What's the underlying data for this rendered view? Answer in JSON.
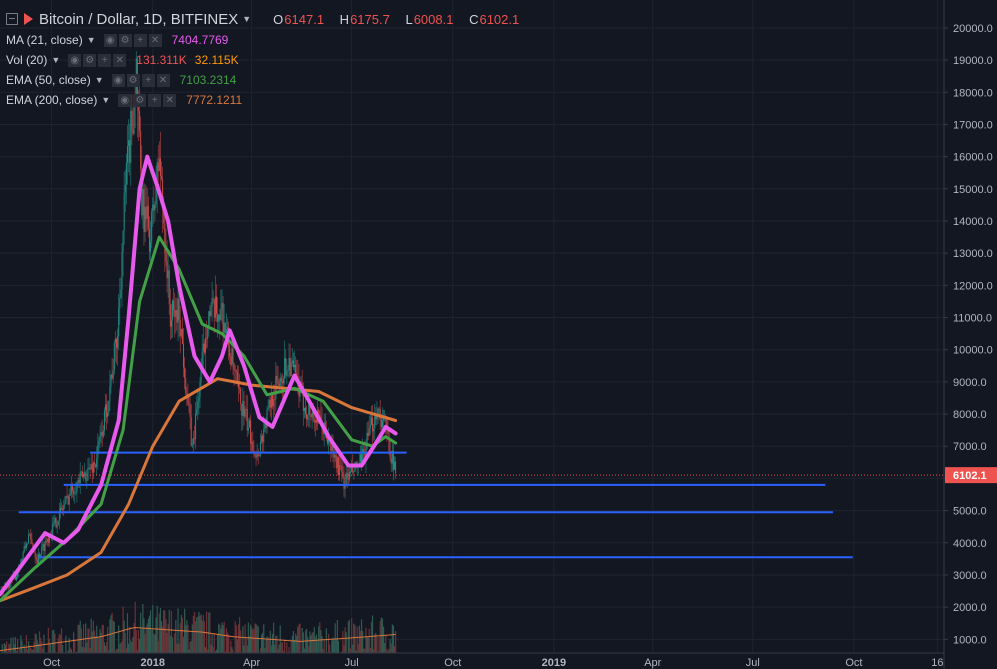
{
  "header": {
    "symbol": "Bitcoin / Dollar, 1D, BITFINEX",
    "ohlc": [
      {
        "key": "O",
        "value": "6147.1"
      },
      {
        "key": "H",
        "value": "6175.7"
      },
      {
        "key": "L",
        "value": "6008.1"
      },
      {
        "key": "C",
        "value": "6102.1"
      }
    ]
  },
  "indicators": [
    {
      "name": "MA (21, close)",
      "value": "7404.7769",
      "color": "#e85aed"
    },
    {
      "name": "Vol (20)",
      "value": "131.311K",
      "value2": "32.115K",
      "color": "#ef5350",
      "color2": "#ff9800"
    },
    {
      "name": "EMA (50, close)",
      "value": "7103.2314",
      "color": "#43a047"
    },
    {
      "name": "EMA (200, close)",
      "value": "7772.1211",
      "color": "#d9773b"
    }
  ],
  "chart_data": {
    "type": "candlestick",
    "instrument": "Bitcoin / Dollar",
    "timeframe": "1D",
    "exchange": "BITFINEX",
    "y_axis": {
      "min": 700,
      "max": 20500,
      "ticks": [
        1000,
        2000,
        3000,
        4000,
        5000,
        6000,
        7000,
        8000,
        9000,
        10000,
        11000,
        12000,
        13000,
        14000,
        15000,
        16000,
        17000,
        18000,
        19000,
        20000
      ],
      "tick_labels": [
        "1000.0",
        "2000.0",
        "3000.0",
        "4000.0",
        "5000.0",
        "6000.0",
        "7000.0",
        "8000.0",
        "9000.0",
        "10000.0",
        "11000.0",
        "12000.0",
        "13000.0",
        "14000.0",
        "15000.0",
        "16000.0",
        "17000.0",
        "18000.0",
        "19000.0",
        "20000.0"
      ]
    },
    "x_axis": {
      "range": [
        "2017-08-15",
        "2019-12-22"
      ],
      "ticks": [
        {
          "date": "2017-10-01",
          "label": "Oct",
          "bold": false
        },
        {
          "date": "2018-01-01",
          "label": "2018",
          "bold": true
        },
        {
          "date": "2018-04-01",
          "label": "Apr",
          "bold": false
        },
        {
          "date": "2018-07-01",
          "label": "Jul",
          "bold": false
        },
        {
          "date": "2018-10-01",
          "label": "Oct",
          "bold": false
        },
        {
          "date": "2019-01-01",
          "label": "2019",
          "bold": true
        },
        {
          "date": "2019-04-01",
          "label": "Apr",
          "bold": false
        },
        {
          "date": "2019-07-01",
          "label": "Jul",
          "bold": false
        },
        {
          "date": "2019-10-01",
          "label": "Oct",
          "bold": false
        },
        {
          "date": "2019-12-16",
          "label": "16",
          "bold": false
        }
      ]
    },
    "last_price": {
      "value": 6102.1,
      "label": "6102.1",
      "color": "#ef5350"
    },
    "price_path": [
      [
        "2017-08-15",
        2400
      ],
      [
        "2017-08-30",
        3000
      ],
      [
        "2017-09-10",
        4200
      ],
      [
        "2017-09-18",
        3500
      ],
      [
        "2017-10-01",
        4400
      ],
      [
        "2017-10-20",
        5700
      ],
      [
        "2017-11-10",
        6500
      ],
      [
        "2017-11-20",
        8200
      ],
      [
        "2017-11-30",
        10500
      ],
      [
        "2017-12-07",
        15000
      ],
      [
        "2017-12-17",
        18500
      ],
      [
        "2017-12-22",
        14500
      ],
      [
        "2017-12-30",
        13500
      ],
      [
        "2018-01-07",
        16000
      ],
      [
        "2018-01-17",
        11000
      ],
      [
        "2018-01-25",
        11200
      ],
      [
        "2018-02-06",
        6900
      ],
      [
        "2018-02-20",
        11100
      ],
      [
        "2018-03-05",
        11200
      ],
      [
        "2018-03-20",
        8600
      ],
      [
        "2018-04-06",
        6700
      ],
      [
        "2018-04-20",
        8600
      ],
      [
        "2018-05-05",
        9700
      ],
      [
        "2018-05-20",
        8200
      ],
      [
        "2018-06-05",
        7600
      ],
      [
        "2018-06-24",
        5900
      ],
      [
        "2018-07-10",
        6500
      ],
      [
        "2018-07-24",
        8200
      ],
      [
        "2018-08-01",
        7600
      ],
      [
        "2018-08-10",
        6100
      ]
    ],
    "volume_profile": [
      [
        "2017-08-15",
        900
      ],
      [
        "2017-09-15",
        1100
      ],
      [
        "2017-10-15",
        1300
      ],
      [
        "2017-11-15",
        1500
      ],
      [
        "2017-12-15",
        1900
      ],
      [
        "2018-01-15",
        1800
      ],
      [
        "2018-02-15",
        1700
      ],
      [
        "2018-03-15",
        1500
      ],
      [
        "2018-04-15",
        1400
      ],
      [
        "2018-05-15",
        1300
      ],
      [
        "2018-06-15",
        1400
      ],
      [
        "2018-07-15",
        1500
      ],
      [
        "2018-08-10",
        1600
      ]
    ],
    "series": [
      {
        "name": "MA (21, close)",
        "color": "#e85aed",
        "points": [
          [
            "2017-08-15",
            2400
          ],
          [
            "2017-09-10",
            3600
          ],
          [
            "2017-09-25",
            4300
          ],
          [
            "2017-10-12",
            4000
          ],
          [
            "2017-10-25",
            4400
          ],
          [
            "2017-11-15",
            5800
          ],
          [
            "2017-12-01",
            7800
          ],
          [
            "2017-12-10",
            11000
          ],
          [
            "2017-12-20",
            15000
          ],
          [
            "2017-12-27",
            16000
          ],
          [
            "2018-01-06",
            15000
          ],
          [
            "2018-01-15",
            14000
          ],
          [
            "2018-01-25",
            12000
          ],
          [
            "2018-02-08",
            9800
          ],
          [
            "2018-02-22",
            9000
          ],
          [
            "2018-03-05",
            9800
          ],
          [
            "2018-03-12",
            10600
          ],
          [
            "2018-03-25",
            9500
          ],
          [
            "2018-04-08",
            7900
          ],
          [
            "2018-04-20",
            7600
          ],
          [
            "2018-05-10",
            9200
          ],
          [
            "2018-05-25",
            8300
          ],
          [
            "2018-06-10",
            7300
          ],
          [
            "2018-06-28",
            6400
          ],
          [
            "2018-07-10",
            6400
          ],
          [
            "2018-07-25",
            7200
          ],
          [
            "2018-08-01",
            7600
          ],
          [
            "2018-08-10",
            7400
          ]
        ]
      },
      {
        "name": "EMA (50, close)",
        "color": "#43a047",
        "points": [
          [
            "2017-08-15",
            2200
          ],
          [
            "2017-09-15",
            3200
          ],
          [
            "2017-10-15",
            4100
          ],
          [
            "2017-11-15",
            5200
          ],
          [
            "2017-12-05",
            7500
          ],
          [
            "2017-12-20",
            11500
          ],
          [
            "2018-01-07",
            13500
          ],
          [
            "2018-01-25",
            12500
          ],
          [
            "2018-02-15",
            10800
          ],
          [
            "2018-03-05",
            10500
          ],
          [
            "2018-03-25",
            9800
          ],
          [
            "2018-04-15",
            8600
          ],
          [
            "2018-05-10",
            8800
          ],
          [
            "2018-06-05",
            8400
          ],
          [
            "2018-07-01",
            7200
          ],
          [
            "2018-07-20",
            7000
          ],
          [
            "2018-08-01",
            7300
          ],
          [
            "2018-08-10",
            7100
          ]
        ]
      },
      {
        "name": "EMA (200, close)",
        "color": "#d9773b",
        "points": [
          [
            "2017-08-15",
            2200
          ],
          [
            "2017-09-15",
            2600
          ],
          [
            "2017-10-15",
            3000
          ],
          [
            "2017-11-15",
            3700
          ],
          [
            "2017-12-10",
            5200
          ],
          [
            "2018-01-01",
            7000
          ],
          [
            "2018-01-25",
            8400
          ],
          [
            "2018-03-01",
            9100
          ],
          [
            "2018-04-01",
            8900
          ],
          [
            "2018-05-01",
            8800
          ],
          [
            "2018-06-01",
            8700
          ],
          [
            "2018-07-01",
            8200
          ],
          [
            "2018-08-10",
            7800
          ]
        ]
      }
    ],
    "horizontal_lines": [
      {
        "price": 6800,
        "from": "2017-11-05",
        "to": "2018-08-20",
        "color": "#2962ff"
      },
      {
        "price": 5800,
        "from": "2017-10-12",
        "to": "2019-09-05",
        "color": "#2962ff"
      },
      {
        "price": 4950,
        "from": "2017-09-01",
        "to": "2019-09-12",
        "color": "#2962ff"
      },
      {
        "price": 3550,
        "from": "2017-09-20",
        "to": "2019-09-30",
        "color": "#2962ff"
      }
    ]
  }
}
